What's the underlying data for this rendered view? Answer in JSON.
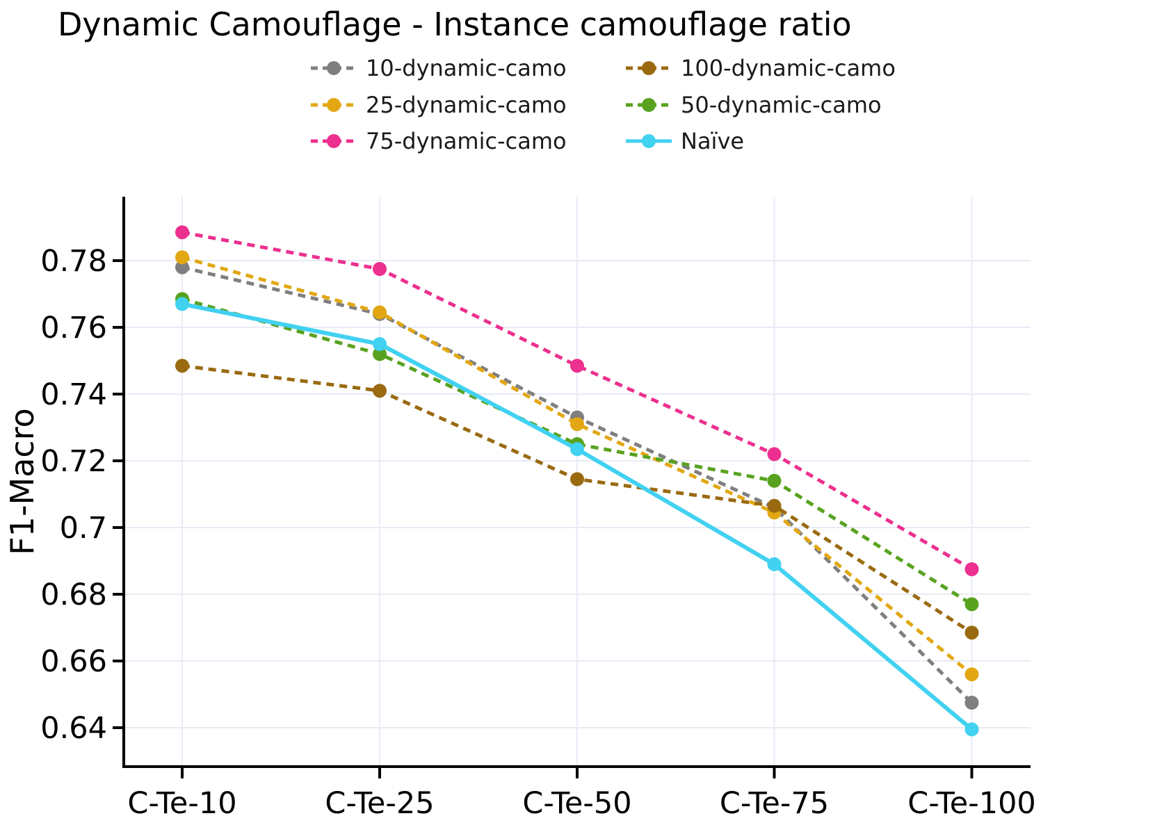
{
  "chart_data": {
    "type": "line",
    "title": "Dynamic Camouflage - Instance camouflage ratio",
    "xlabel": "",
    "ylabel": "F1-Macro",
    "categories": [
      "C-Te-10",
      "C-Te-25",
      "C-Te-50",
      "C-Te-75",
      "C-Te-100"
    ],
    "ytick_values": [
      0.78,
      0.76,
      0.74,
      0.72,
      0.7,
      0.68,
      0.66,
      0.64
    ],
    "ytick_labels": [
      "0.78",
      "0.76",
      "0.74",
      "0.72",
      "0.7",
      "0.68",
      "0.66",
      "0.64"
    ],
    "ylim": [
      0.628,
      0.799
    ],
    "grid": true,
    "grid_color": "#e8ebf5",
    "axis_color": "#000000",
    "legend_position": "top-center-two-columns",
    "legend_column_order": [
      [
        0,
        1,
        2
      ],
      [
        3,
        4,
        5
      ]
    ],
    "series": [
      {
        "name": "10-dynamic-camo",
        "color": "#7f7f7f",
        "line_style": "dashed",
        "values": [
          0.778,
          0.764,
          0.733,
          0.706,
          0.6475
        ]
      },
      {
        "name": "25-dynamic-camo",
        "color": "#e2a713",
        "line_style": "dashed",
        "values": [
          0.781,
          0.7645,
          0.731,
          0.7045,
          0.656
        ]
      },
      {
        "name": "75-dynamic-camo",
        "color": "#ec308f",
        "line_style": "dashed",
        "values": [
          0.7885,
          0.7775,
          0.7485,
          0.722,
          0.6875
        ]
      },
      {
        "name": "100-dynamic-camo",
        "color": "#9a6a11",
        "line_style": "dashed",
        "values": [
          0.7485,
          0.741,
          0.7145,
          0.7065,
          0.6685
        ]
      },
      {
        "name": "50-dynamic-camo",
        "color": "#58a220",
        "line_style": "dashed",
        "values": [
          0.7685,
          0.752,
          0.725,
          0.714,
          0.677
        ]
      },
      {
        "name": "Naïve",
        "color": "#41d1f1",
        "line_style": "solid",
        "values": [
          0.767,
          0.755,
          0.7235,
          0.689,
          0.6395
        ]
      }
    ]
  }
}
